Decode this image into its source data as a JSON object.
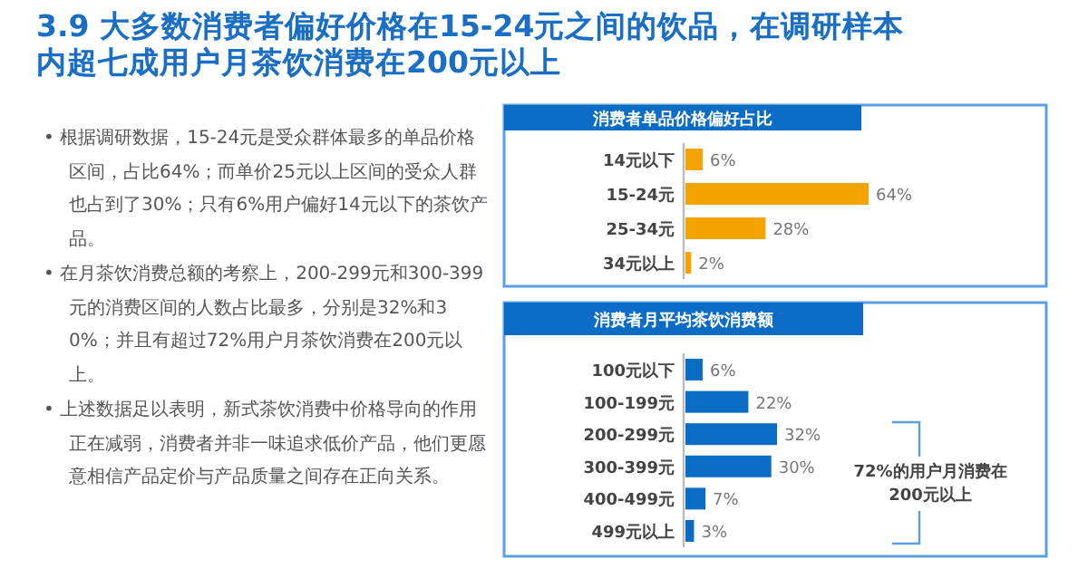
{
  "chart_data": [
    {
      "type": "other",
      "title": "3.9 大多数消费者偏好价格在15-24元之间的饮品，在调研样本内超七成用户月茶饮消费在200元以上",
      "annotations": [
        "• 根据调研数据，15-24元是受众群体最多的单品价格区间，占比64%；而单价25元以上区间的受众人群也占到了30%；只有6%用户偏好14元以下的茶饮产品。",
        "• 在月茶饮消费总额的考察上，200-299元和300-399元的消费区间的人数占比最多，分别是32%和30%；并且有超过72%用户月茶饮消费在200元以上。",
        "• 上述数据足以表明，新式茶饮消费中价格导向的作用正在减弱，消费者并非一味追求低价产品，他们更愿意相信产品定价与产品质量之间存在正向关系。"
      ]
    },
    {
      "type": "bar",
      "orientation": "horizontal",
      "title": "消费者单品价格偏好占比",
      "categories": [
        "14元以下",
        "15-24元",
        "25-34元",
        "34元以上"
      ],
      "values": [
        6,
        64,
        28,
        2
      ],
      "color": "#f5a300",
      "data_labels": true,
      "value_labels": [
        "6%",
        "64%",
        "28%",
        "2%"
      ]
    },
    {
      "type": "bar",
      "orientation": "horizontal",
      "title": "消费者月平均茶饮消费额",
      "categories": [
        "100元以下",
        "100-199元",
        "200-299元",
        "300-399元",
        "400-499元",
        "499元以上"
      ],
      "values": [
        6,
        22,
        32,
        30,
        7,
        3
      ],
      "color": "#0a6cc4",
      "data_labels": true,
      "value_labels": [
        "6%",
        "22%",
        "32%",
        "30%",
        "7%",
        "3%"
      ],
      "annotations": [
        "72%的用户月消费在200元以上"
      ]
    }
  ]
}
